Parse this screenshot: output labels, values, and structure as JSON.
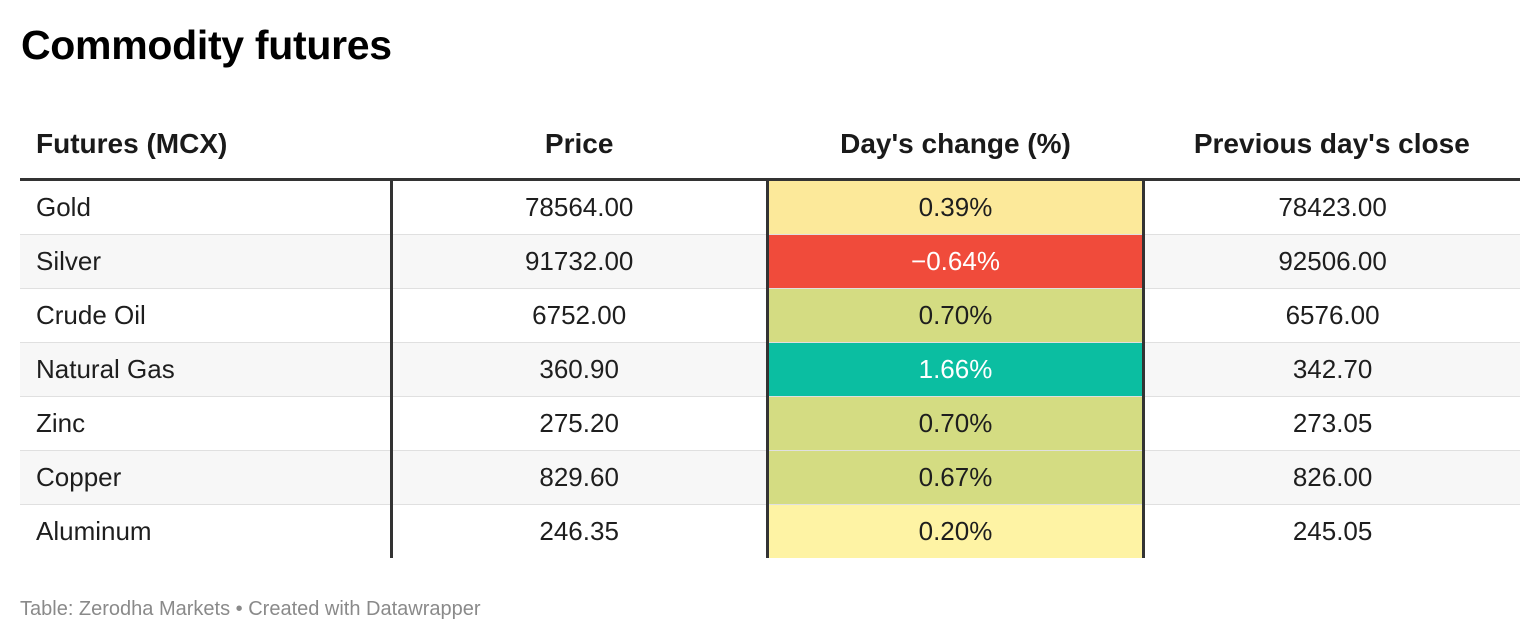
{
  "title": "Commodity futures",
  "source": "Table: Zerodha Markets • Created with Datawrapper",
  "chart_data": {
    "type": "table",
    "title": "Commodity futures",
    "columns": [
      "Futures (MCX)",
      "Price",
      "Day's change (%)",
      "Previous day's close"
    ],
    "rows": [
      {
        "name": "Gold",
        "price": "78564.00",
        "change": "0.39%",
        "change_value": 0.39,
        "prev_close": "78423.00"
      },
      {
        "name": "Silver",
        "price": "91732.00",
        "change": "−0.64%",
        "change_value": -0.64,
        "prev_close": "92506.00"
      },
      {
        "name": "Crude Oil",
        "price": "6752.00",
        "change": "0.70%",
        "change_value": 0.7,
        "prev_close": "6576.00"
      },
      {
        "name": "Natural Gas",
        "price": "360.90",
        "change": "1.66%",
        "change_value": 1.66,
        "prev_close": "342.70"
      },
      {
        "name": "Zinc",
        "price": "275.20",
        "change": "0.70%",
        "change_value": 0.7,
        "prev_close": "273.05"
      },
      {
        "name": "Copper",
        "price": "829.60",
        "change": "0.67%",
        "change_value": 0.67,
        "prev_close": "826.00"
      },
      {
        "name": "Aluminum",
        "price": "246.35",
        "change": "0.20%",
        "change_value": 0.2,
        "prev_close": "245.05"
      }
    ],
    "change_colors": {
      "negative": "#f04b3b",
      "low": "#fef3a4",
      "mid_low": "#fce99a",
      "mid": "#d4dc82",
      "high": "#0bbea1"
    },
    "change_text_light": "#ffffff",
    "change_text_dark": "#1e1e1e"
  }
}
